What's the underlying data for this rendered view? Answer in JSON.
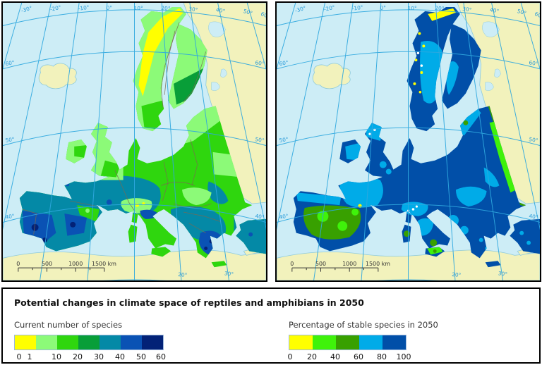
{
  "title": "Potential changes in climate space of reptiles and amphibians in 2050",
  "maps": {
    "left": {
      "name": "Current number of species map"
    },
    "right": {
      "name": "Percentage of stable species in 2050 map"
    }
  },
  "graticule": {
    "top_longitude_labels": [
      "-30°",
      "-20°",
      "-10°",
      "0°",
      "10°",
      "20°",
      "30°",
      "40°",
      "50°",
      "60°"
    ],
    "left_latitude_labels": [
      "60°",
      "50°",
      "40°"
    ],
    "right_latitude_labels": [
      "60°",
      "50°",
      "40°"
    ],
    "bottom_longitude_labels": [
      "20°",
      "30°"
    ]
  },
  "scalebar": {
    "labels": [
      "0",
      "500",
      "1000",
      "1500 km"
    ]
  },
  "legend_current": {
    "label": "Current number of species",
    "colors": [
      "#FFFF00",
      "#8CFA78",
      "#2FD60E",
      "#089E38",
      "#0489A6",
      "#0A52B4",
      "#032277"
    ],
    "ticks": [
      "0",
      "1",
      "10",
      "20",
      "30",
      "40",
      "50",
      "60"
    ]
  },
  "legend_stable": {
    "label": "Percentage of stable species in 2050",
    "colors": [
      "#FFFF00",
      "#3FF20A",
      "#38A000",
      "#00ABE8",
      "#014FA8"
    ],
    "ticks": [
      "0",
      "20",
      "40",
      "60",
      "80",
      "100"
    ]
  },
  "map_colors": {
    "sea": "#CDEDF6",
    "outside_area_land": "#F2F2BC",
    "graticule_line": "#2FA8DF",
    "graticule_label": "#2398D8",
    "coastline": "#8ECADB",
    "country_border": "#7A6A50",
    "scalebar": "#333333"
  }
}
